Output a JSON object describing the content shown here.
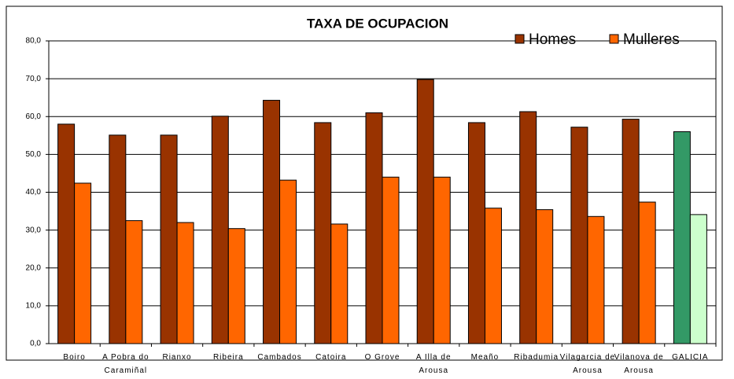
{
  "chart_data": {
    "type": "bar",
    "title": "TAXA DE OCUPACION",
    "categories": [
      "Boiro",
      "A Pobra do Caramiñal",
      "Rianxo",
      "Ribeira",
      "Cambados",
      "Catoira",
      "O Grove",
      "A Illa de Arousa",
      "Meaño",
      "Ribadumia",
      "Vilagarcia de Arousa",
      "Vilanova de Arousa",
      "GALICIA"
    ],
    "series": [
      {
        "name": "Homes",
        "color": "#993300",
        "colors": [
          "#993300",
          "#993300",
          "#993300",
          "#993300",
          "#993300",
          "#993300",
          "#993300",
          "#993300",
          "#993300",
          "#993300",
          "#993300",
          "#993300",
          "#339966"
        ],
        "values": [
          58.0,
          55.1,
          55.1,
          60.1,
          64.3,
          58.4,
          61.0,
          69.8,
          58.4,
          61.3,
          57.2,
          59.3,
          56.0
        ]
      },
      {
        "name": "Mulleres",
        "color": "#ff6600",
        "colors": [
          "#ff6600",
          "#ff6600",
          "#ff6600",
          "#ff6600",
          "#ff6600",
          "#ff6600",
          "#ff6600",
          "#ff6600",
          "#ff6600",
          "#ff6600",
          "#ff6600",
          "#ff6600",
          "#ccffcc"
        ],
        "values": [
          42.4,
          32.5,
          32.0,
          30.4,
          43.2,
          31.6,
          44.0,
          44.0,
          35.8,
          35.4,
          33.6,
          37.4,
          34.1
        ]
      }
    ],
    "ylim": [
      0,
      80
    ],
    "yticks": [
      {
        "value": 0,
        "label": "0,0"
      },
      {
        "value": 10,
        "label": "10,0"
      },
      {
        "value": 20,
        "label": "20,0"
      },
      {
        "value": 30,
        "label": "30,0"
      },
      {
        "value": 40,
        "label": "40,0"
      },
      {
        "value": 50,
        "label": "50,0"
      },
      {
        "value": 60,
        "label": "60,0"
      },
      {
        "value": 70,
        "label": "70,0"
      },
      {
        "value": 80,
        "label": "80,0"
      }
    ],
    "grid": true,
    "legend": "top-right"
  }
}
